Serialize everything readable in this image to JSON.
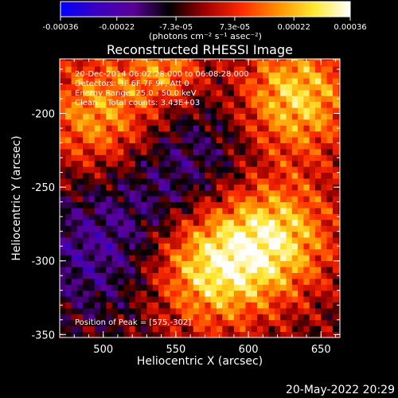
{
  "colorbar": {
    "colors": [
      "#0000ff",
      "#3a00c0",
      "#5a0098",
      "#000000",
      "#a00000",
      "#ff2a00",
      "#ff9000",
      "#ffe830",
      "#ffffff"
    ],
    "range": [
      -0.00036,
      0.00036
    ],
    "tick_labels": [
      "-0.00036",
      "-0.00022",
      "-7.3e-05",
      "7.3e-05",
      "0.00022",
      "0.00036"
    ],
    "units_label": "(photons cm⁻² s⁻¹ asec⁻²)"
  },
  "chart_data": {
    "type": "heatmap",
    "title": "Reconstructed RHESSI Image",
    "xlabel": "Heliocentric X (arcsec)",
    "ylabel": "Heliocentric Y (arcsec)",
    "xlim": [
      470,
      663
    ],
    "ylim": [
      -352,
      -163
    ],
    "x_ticks": [
      500,
      550,
      600,
      650
    ],
    "x_tick_labels": [
      "500",
      "550",
      "600",
      "650"
    ],
    "y_ticks": [
      -200,
      -250,
      -300,
      -350
    ],
    "y_tick_labels": [
      "-200",
      "-250",
      "-300",
      "-350"
    ],
    "annotations": [
      "20-Dec-2014 06:02:28.000 to 06:08:28.000",
      "Detectors: 3F 6F 7F 9F, Att 0",
      "Energy Range: 25.0 - 50.0 keV",
      "Clean    Total counts: 3.43E+03"
    ],
    "peak_label": "Position of Peak = [575,-302]",
    "peak": [
      575,
      -302
    ],
    "sources": [
      {
        "x": 575,
        "y": -302,
        "amp": 1.0,
        "sigma": 30
      },
      {
        "x": 632,
        "y": -189,
        "amp": 0.85,
        "sigma": 28
      },
      {
        "x": 500,
        "y": -202,
        "amp": 0.8,
        "sigma": 30
      },
      {
        "x": 620,
        "y": -282,
        "amp": 0.8,
        "sigma": 28
      },
      {
        "x": 545,
        "y": -168,
        "amp": 0.55,
        "sigma": 18
      }
    ],
    "negative_regions": [
      {
        "x": 545,
        "y": -245,
        "amp": -0.45,
        "sigma": 45
      },
      {
        "x": 490,
        "y": -300,
        "amp": -0.3,
        "sigma": 30
      }
    ]
  },
  "timestamp": "20-May-2022 20:29"
}
